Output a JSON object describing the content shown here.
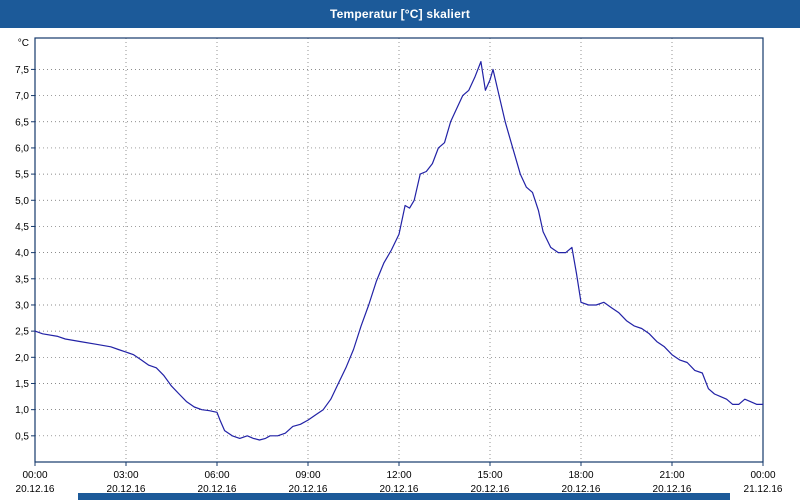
{
  "title_bar": {
    "title": "Temperatur [°C] skaliert"
  },
  "colors": {
    "header_bg": "#1c5a99",
    "line": "#2222a6",
    "border": "#14386b",
    "grid": "#666666",
    "text": "#000000"
  },
  "chart_data": {
    "type": "line",
    "title": "Temperatur [°C] skaliert",
    "ylabel": "°C",
    "unit_label": "°C",
    "grid": true,
    "legend": "none",
    "ylim": [
      0,
      8.1
    ],
    "xlim": [
      0,
      24
    ],
    "y_ticks": [
      {
        "value": 7.5,
        "label": "7,5"
      },
      {
        "value": 7.0,
        "label": "7,0"
      },
      {
        "value": 6.5,
        "label": "6,5"
      },
      {
        "value": 6.0,
        "label": "6,0"
      },
      {
        "value": 5.5,
        "label": "5,5"
      },
      {
        "value": 5.0,
        "label": "5,0"
      },
      {
        "value": 4.5,
        "label": "4,5"
      },
      {
        "value": 4.0,
        "label": "4,0"
      },
      {
        "value": 3.5,
        "label": "3,5"
      },
      {
        "value": 3.0,
        "label": "3,0"
      },
      {
        "value": 2.5,
        "label": "2,5"
      },
      {
        "value": 2.0,
        "label": "2,0"
      },
      {
        "value": 1.5,
        "label": "1,5"
      },
      {
        "value": 1.0,
        "label": "1,0"
      },
      {
        "value": 0.5,
        "label": "0,5"
      }
    ],
    "x_ticks": [
      {
        "hours": 0,
        "time": "00:00",
        "date": "20.12.16"
      },
      {
        "hours": 3,
        "time": "03:00",
        "date": "20.12.16"
      },
      {
        "hours": 6,
        "time": "06:00",
        "date": "20.12.16"
      },
      {
        "hours": 9,
        "time": "09:00",
        "date": "20.12.16"
      },
      {
        "hours": 12,
        "time": "12:00",
        "date": "20.12.16"
      },
      {
        "hours": 15,
        "time": "15:00",
        "date": "20.12.16"
      },
      {
        "hours": 18,
        "time": "18:00",
        "date": "20.12.16"
      },
      {
        "hours": 21,
        "time": "21:00",
        "date": "20.12.16"
      },
      {
        "hours": 24,
        "time": "00:00",
        "date": "21.12.16"
      }
    ],
    "series": [
      {
        "name": "Temperatur",
        "x": [
          0,
          0.25,
          0.75,
          1.0,
          1.5,
          2.0,
          2.5,
          2.75,
          3.0,
          3.25,
          3.5,
          3.75,
          4.0,
          4.25,
          4.5,
          4.75,
          5.0,
          5.25,
          5.5,
          5.75,
          6.0,
          6.1,
          6.25,
          6.5,
          6.75,
          7.0,
          7.2,
          7.4,
          7.6,
          7.75,
          8.0,
          8.25,
          8.5,
          8.75,
          9.0,
          9.25,
          9.5,
          9.75,
          10.0,
          10.25,
          10.5,
          10.75,
          11.0,
          11.25,
          11.5,
          11.75,
          12.0,
          12.2,
          12.35,
          12.5,
          12.7,
          12.9,
          13.1,
          13.3,
          13.5,
          13.7,
          13.9,
          14.1,
          14.3,
          14.5,
          14.7,
          14.85,
          15.0,
          15.1,
          15.3,
          15.5,
          15.7,
          16.0,
          16.2,
          16.4,
          16.6,
          16.75,
          17.0,
          17.25,
          17.5,
          17.7,
          17.85,
          18.0,
          18.25,
          18.5,
          18.75,
          19.0,
          19.25,
          19.5,
          19.75,
          20.0,
          20.25,
          20.5,
          20.75,
          21.0,
          21.25,
          21.5,
          21.75,
          22.0,
          22.2,
          22.4,
          22.6,
          22.8,
          23.0,
          23.2,
          23.4,
          23.6,
          23.8,
          24.0
        ],
        "y": [
          2.5,
          2.45,
          2.4,
          2.35,
          2.3,
          2.25,
          2.2,
          2.15,
          2.1,
          2.05,
          1.95,
          1.85,
          1.8,
          1.65,
          1.45,
          1.3,
          1.15,
          1.05,
          1.0,
          0.98,
          0.95,
          0.8,
          0.6,
          0.5,
          0.45,
          0.5,
          0.45,
          0.42,
          0.45,
          0.5,
          0.5,
          0.55,
          0.68,
          0.72,
          0.8,
          0.9,
          1.0,
          1.2,
          1.5,
          1.8,
          2.15,
          2.6,
          3.0,
          3.45,
          3.8,
          4.05,
          4.35,
          4.9,
          4.85,
          5.0,
          5.5,
          5.55,
          5.7,
          6.0,
          6.1,
          6.5,
          6.75,
          7.0,
          7.1,
          7.35,
          7.65,
          7.1,
          7.3,
          7.5,
          7.0,
          6.5,
          6.1,
          5.5,
          5.25,
          5.15,
          4.8,
          4.4,
          4.1,
          4.0,
          4.0,
          4.1,
          3.6,
          3.05,
          3.0,
          3.0,
          3.05,
          2.95,
          2.85,
          2.7,
          2.6,
          2.55,
          2.45,
          2.3,
          2.2,
          2.05,
          1.95,
          1.9,
          1.75,
          1.7,
          1.4,
          1.3,
          1.25,
          1.2,
          1.1,
          1.1,
          1.2,
          1.15,
          1.1,
          1.1
        ]
      }
    ]
  }
}
